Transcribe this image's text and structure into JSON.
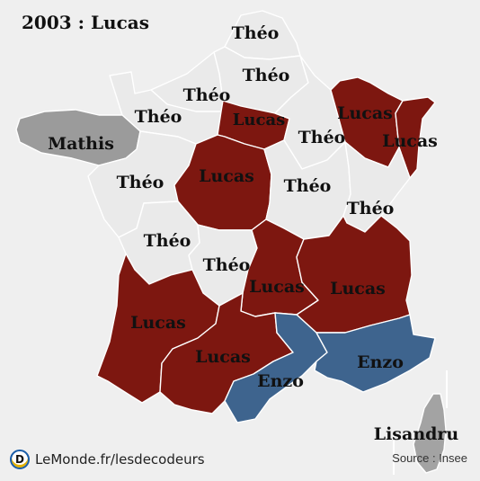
{
  "title": "2003 : Lucas",
  "colors": {
    "background": "#efefef",
    "theo": "#eaeaea",
    "lucas": "#7d1710",
    "enzo": "#3e648e",
    "mathis": "#9b9b9b",
    "lisandru": "#a3a3a3"
  },
  "regions": [
    {
      "id": "nord-pas-de-calais",
      "name_shown": "Théo",
      "group": "theo"
    },
    {
      "id": "picardie",
      "name_shown": "Théo",
      "group": "theo"
    },
    {
      "id": "haute-normandie",
      "name_shown": "Théo",
      "group": "theo"
    },
    {
      "id": "basse-normandie",
      "name_shown": "Théo",
      "group": "theo"
    },
    {
      "id": "ile-de-france",
      "name_shown": "Lucas",
      "group": "lucas"
    },
    {
      "id": "champagne-ardenne",
      "name_shown": "Théo",
      "group": "theo"
    },
    {
      "id": "lorraine",
      "name_shown": "Lucas",
      "group": "lucas"
    },
    {
      "id": "alsace",
      "name_shown": "Lucas",
      "group": "lucas"
    },
    {
      "id": "bretagne",
      "name_shown": "Mathis",
      "group": "mathis"
    },
    {
      "id": "pays-de-la-loire",
      "name_shown": "Théo",
      "group": "theo"
    },
    {
      "id": "centre",
      "name_shown": "Lucas",
      "group": "lucas"
    },
    {
      "id": "bourgogne",
      "name_shown": "Théo",
      "group": "theo"
    },
    {
      "id": "franche-comte",
      "name_shown": "Théo",
      "group": "theo"
    },
    {
      "id": "poitou-charentes",
      "name_shown": "Théo",
      "group": "theo"
    },
    {
      "id": "limousin",
      "name_shown": "Théo",
      "group": "theo"
    },
    {
      "id": "auvergne",
      "name_shown": "Lucas",
      "group": "lucas"
    },
    {
      "id": "rhone-alpes",
      "name_shown": "Lucas",
      "group": "lucas"
    },
    {
      "id": "aquitaine",
      "name_shown": "Lucas",
      "group": "lucas"
    },
    {
      "id": "midi-pyrenees",
      "name_shown": "Lucas",
      "group": "lucas"
    },
    {
      "id": "languedoc-roussillon",
      "name_shown": "Enzo",
      "group": "enzo"
    },
    {
      "id": "provence-alpes-cote-d-azur",
      "name_shown": "Enzo",
      "group": "enzo"
    },
    {
      "id": "corse",
      "name_shown": "Lisandru",
      "group": "lisandru"
    }
  ],
  "footer": {
    "logo_letter": "D",
    "brand": "LeMonde.fr/lesdecodeurs",
    "source": "Source : Insee"
  }
}
